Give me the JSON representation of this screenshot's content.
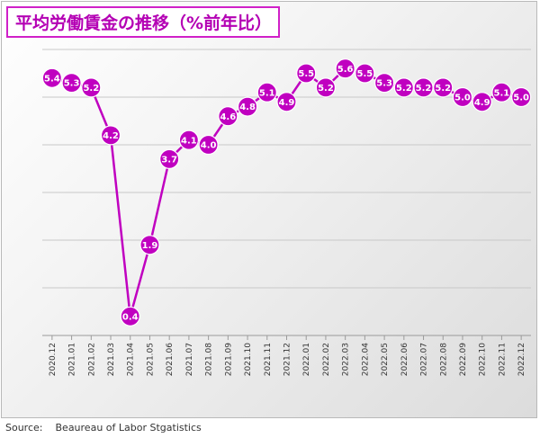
{
  "title": "平均労働賃金の推移（%前年比）",
  "source": {
    "label": "Source:",
    "text": "Beaureau of Labor Stgatistics"
  },
  "colors": {
    "series": "#c000c0",
    "title": "#b400b4",
    "grid": "#c8c8c8"
  },
  "chart_data": {
    "type": "line",
    "title": "平均労働賃金の推移（%前年比）",
    "xlabel": "",
    "ylabel": "",
    "categories": [
      "2020.12",
      "2021.01",
      "2021.02",
      "2021.03",
      "2021.04",
      "2021.05",
      "2021.06",
      "2021.07",
      "2021.08",
      "2021.09",
      "2021.10",
      "2021.11",
      "2021.12",
      "2022.01",
      "2022.02",
      "2022.03",
      "2022.04",
      "2022.05",
      "2022.06",
      "2022.07",
      "2022.08",
      "2022.09",
      "2022.10",
      "2022.11",
      "2022.12"
    ],
    "series": [
      {
        "values": [
          5.4,
          5.3,
          5.2,
          4.2,
          0.4,
          1.9,
          3.7,
          4.1,
          4.0,
          4.6,
          4.8,
          5.1,
          4.9,
          5.5,
          5.2,
          5.6,
          5.5,
          5.3,
          5.2,
          5.2,
          5.2,
          5.0,
          4.9,
          5.1,
          5.0
        ]
      }
    ],
    "ylim": [
      0,
      6
    ],
    "grid": true,
    "legend": "none",
    "data_labels": true,
    "y_tick_labels_shown": false
  }
}
